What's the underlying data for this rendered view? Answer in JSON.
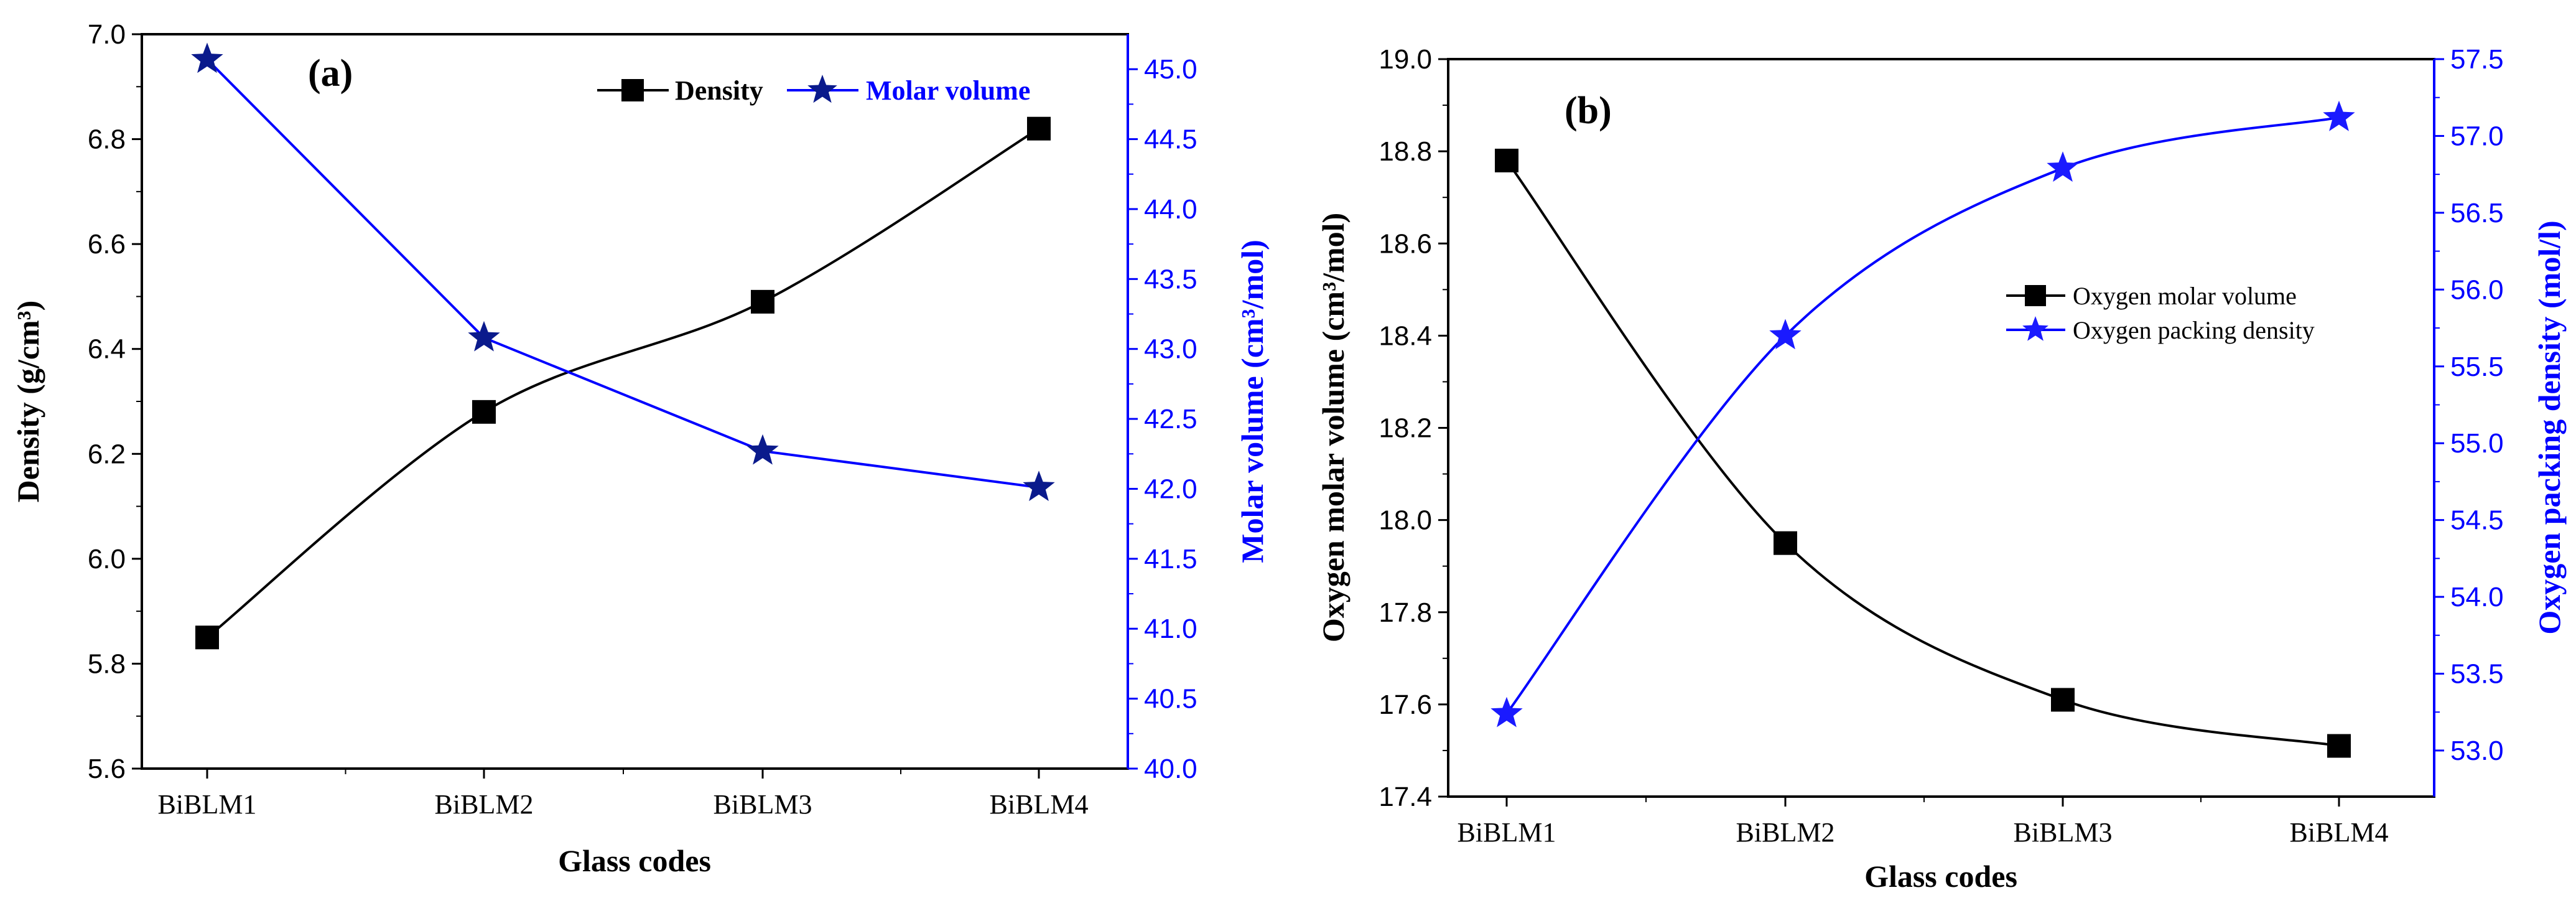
{
  "chart_data": [
    {
      "type": "line",
      "panel_label": "(a)",
      "categories": [
        "BiBLM1",
        "BiBLM2",
        "BiBLM3",
        "BiBLM4"
      ],
      "xlabel": "Glass codes",
      "ylabel_left": "Density (g/cm³)",
      "ylabel_right": "Molar volume (cm³/mol)",
      "ylim_left": [
        5.6,
        7.0
      ],
      "yticks_left": [
        "5.6",
        "5.8",
        "6.0",
        "6.2",
        "6.4",
        "6.6",
        "6.8",
        "7.0"
      ],
      "ylim_right": [
        40.0,
        45.25
      ],
      "yticks_right": [
        "40.0",
        "40.5",
        "41.0",
        "41.5",
        "42.0",
        "42.5",
        "43.0",
        "43.5",
        "44.0",
        "44.5",
        "45.0"
      ],
      "legend_position": "top-right",
      "grid": false,
      "series": [
        {
          "name": "Density",
          "axis": "left",
          "marker": "square",
          "color": "#000000",
          "smooth": true,
          "values": [
            5.85,
            6.28,
            6.49,
            6.82
          ]
        },
        {
          "name": "Molar volume",
          "axis": "right",
          "marker": "star",
          "color": "#0000ff",
          "marker_color": "#0a1a8c",
          "smooth": false,
          "values": [
            45.07,
            43.08,
            42.27,
            42.01
          ]
        }
      ]
    },
    {
      "type": "line",
      "panel_label": "(b)",
      "categories": [
        "BiBLM1",
        "BiBLM2",
        "BiBLM3",
        "BiBLM4"
      ],
      "xlabel": "Glass codes",
      "ylabel_left": "Oxygen molar volume (cm³/mol)",
      "ylabel_right": "Oxygen packing density (mol/l)",
      "ylim_left": [
        17.4,
        19.0
      ],
      "yticks_left": [
        "17.4",
        "17.6",
        "17.8",
        "18.0",
        "18.2",
        "18.4",
        "18.6",
        "18.8",
        "19.0"
      ],
      "ylim_right": [
        52.7,
        57.5
      ],
      "yticks_right": [
        "53.0",
        "53.5",
        "54.0",
        "54.5",
        "55.0",
        "55.5",
        "56.0",
        "56.5",
        "57.0",
        "57.5"
      ],
      "legend_position": "center-right",
      "grid": false,
      "series": [
        {
          "name": "Oxygen molar volume",
          "axis": "left",
          "marker": "square",
          "color": "#000000",
          "smooth": true,
          "values": [
            18.78,
            17.95,
            17.61,
            17.51
          ]
        },
        {
          "name": "Oxygen packing density",
          "axis": "right",
          "marker": "star",
          "color": "#0000ff",
          "marker_color": "#1a1aff",
          "smooth": true,
          "values": [
            53.24,
            55.7,
            56.79,
            57.12
          ]
        }
      ]
    }
  ]
}
